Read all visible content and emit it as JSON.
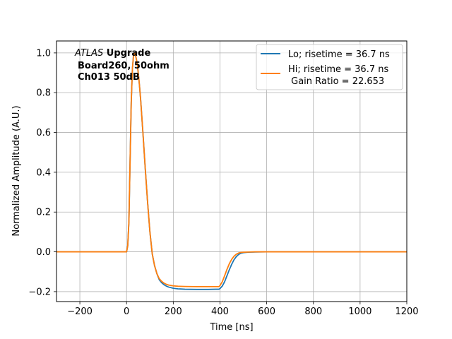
{
  "chart_data": {
    "type": "line",
    "xlabel": "Time [ns]",
    "ylabel": "Normalized Amplitude (A.U.)",
    "xlim": [
      -300,
      1200
    ],
    "ylim": [
      -0.25,
      1.06
    ],
    "xticks": [
      -200,
      0,
      200,
      400,
      600,
      800,
      1000,
      1200
    ],
    "yticks": [
      -0.2,
      0.0,
      0.2,
      0.4,
      0.6,
      0.8,
      1.0
    ],
    "xtick_labels": [
      "−200",
      "0",
      "200",
      "400",
      "600",
      "800",
      "1000",
      "1200"
    ],
    "ytick_labels": [
      "−0.2",
      "0.0",
      "0.2",
      "0.4",
      "0.6",
      "0.8",
      "1.0"
    ],
    "grid": true,
    "legend_position": "top-right",
    "annotation": {
      "line1_italic": "ATLAS",
      "line1_bold": " Upgrade",
      "line2": "Board260, 50ohm",
      "line3": "Ch013 50dB"
    },
    "series": [
      {
        "name": "Lo; risetime = 36.7 ns",
        "color": "#1f77b4",
        "x": [
          -300,
          -100,
          0,
          5,
          10,
          15,
          20,
          25,
          30,
          35,
          40,
          45,
          50,
          55,
          60,
          70,
          80,
          90,
          100,
          110,
          120,
          130,
          140,
          150,
          160,
          170,
          180,
          200,
          220,
          250,
          300,
          350,
          380,
          395,
          400,
          410,
          420,
          430,
          440,
          450,
          460,
          470,
          480,
          490,
          500,
          520,
          550,
          600,
          700,
          800,
          900,
          1000,
          1100,
          1200
        ],
        "y": [
          0.0,
          0.0,
          0.0,
          0.03,
          0.15,
          0.45,
          0.75,
          0.92,
          0.99,
          1.0,
          0.98,
          0.95,
          0.9,
          0.84,
          0.77,
          0.6,
          0.42,
          0.25,
          0.1,
          -0.01,
          -0.07,
          -0.11,
          -0.14,
          -0.155,
          -0.165,
          -0.172,
          -0.177,
          -0.183,
          -0.186,
          -0.188,
          -0.189,
          -0.189,
          -0.188,
          -0.188,
          -0.185,
          -0.172,
          -0.15,
          -0.12,
          -0.09,
          -0.063,
          -0.04,
          -0.024,
          -0.013,
          -0.007,
          -0.004,
          -0.002,
          -0.001,
          0.0,
          0.0,
          0.0,
          0.0,
          0.0,
          0.0,
          0.0
        ]
      },
      {
        "name": "Hi; risetime = 36.7 ns\n Gain Ratio = 22.653",
        "color": "#ff7f0e",
        "x": [
          -300,
          -100,
          0,
          5,
          10,
          15,
          20,
          25,
          30,
          35,
          40,
          45,
          50,
          55,
          60,
          70,
          80,
          90,
          100,
          110,
          120,
          130,
          140,
          150,
          160,
          170,
          180,
          200,
          220,
          250,
          300,
          350,
          380,
          395,
          400,
          410,
          420,
          430,
          440,
          450,
          460,
          470,
          480,
          490,
          500,
          520,
          550,
          600,
          700,
          800,
          900,
          1000,
          1100,
          1200
        ],
        "y": [
          0.0,
          0.0,
          0.0,
          0.03,
          0.15,
          0.45,
          0.75,
          0.92,
          0.99,
          1.0,
          0.98,
          0.95,
          0.9,
          0.84,
          0.77,
          0.6,
          0.42,
          0.25,
          0.1,
          -0.01,
          -0.07,
          -0.11,
          -0.135,
          -0.148,
          -0.157,
          -0.163,
          -0.167,
          -0.171,
          -0.173,
          -0.174,
          -0.175,
          -0.175,
          -0.175,
          -0.175,
          -0.17,
          -0.15,
          -0.12,
          -0.088,
          -0.06,
          -0.038,
          -0.022,
          -0.012,
          -0.006,
          -0.003,
          -0.002,
          -0.001,
          0.0,
          0.0,
          0.0,
          0.0,
          0.0,
          0.0,
          0.0,
          0.0
        ]
      }
    ]
  }
}
